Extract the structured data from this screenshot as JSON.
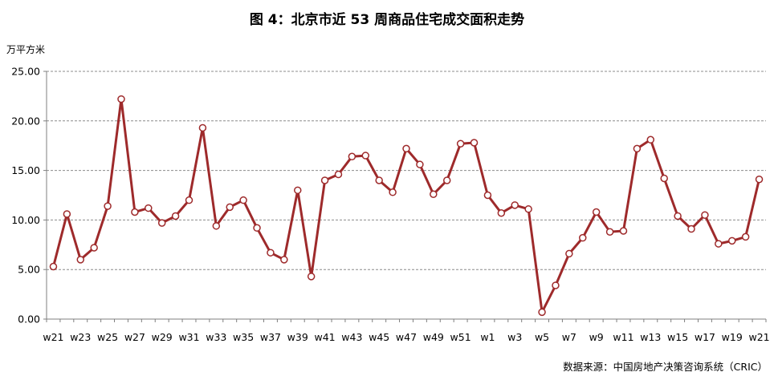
{
  "chart_data": {
    "type": "line",
    "title": "图 4：北京市近 53 周商品住宅成交面积走势",
    "ylabel": "万平方米",
    "xlabel": "",
    "source": "数据来源：中国房地产决策咨询系统（CRIC）",
    "ylim": [
      0,
      25
    ],
    "y_ticks": [
      "0.00",
      "5.00",
      "10.00",
      "15.00",
      "20.00",
      "25.00"
    ],
    "x_tick_labels": [
      "w21",
      "w23",
      "w25",
      "w27",
      "w29",
      "w31",
      "w33",
      "w35",
      "w37",
      "w39",
      "w41",
      "w43",
      "w45",
      "w47",
      "w49",
      "w51",
      "w1",
      "w3",
      "w5",
      "w7",
      "w9",
      "w11",
      "w13",
      "w15",
      "w17",
      "w19",
      "w21"
    ],
    "grid": "horizontal-dashed",
    "x": [
      "w21",
      "w22",
      "w23",
      "w24",
      "w25",
      "w26",
      "w27",
      "w28",
      "w29",
      "w30",
      "w31",
      "w32",
      "w33",
      "w34",
      "w35",
      "w36",
      "w37",
      "w38",
      "w39",
      "w40",
      "w41",
      "w42",
      "w43",
      "w44",
      "w45",
      "w46",
      "w47",
      "w48",
      "w49",
      "w50",
      "w51",
      "w52",
      "w1",
      "w2",
      "w3",
      "w4",
      "w5",
      "w6",
      "w7",
      "w8",
      "w9",
      "w10",
      "w11",
      "w12",
      "w13",
      "w14",
      "w15",
      "w16",
      "w17",
      "w18",
      "w19",
      "w20",
      "w21"
    ],
    "series": [
      {
        "name": "",
        "color": "#9e2a2b",
        "values": [
          5.3,
          10.6,
          6.0,
          7.2,
          11.4,
          22.2,
          10.8,
          11.2,
          9.7,
          10.4,
          12.0,
          19.3,
          9.4,
          11.3,
          12.0,
          9.2,
          6.7,
          6.0,
          13.0,
          4.3,
          14.0,
          14.6,
          16.4,
          16.5,
          14.0,
          12.8,
          17.2,
          15.6,
          12.6,
          14.0,
          17.7,
          17.8,
          12.5,
          10.7,
          11.5,
          11.1,
          0.7,
          3.4,
          6.6,
          8.2,
          10.8,
          8.8,
          8.9,
          17.2,
          18.1,
          14.2,
          10.4,
          9.1,
          10.5,
          7.6,
          7.9,
          8.3,
          14.1
        ]
      }
    ]
  }
}
